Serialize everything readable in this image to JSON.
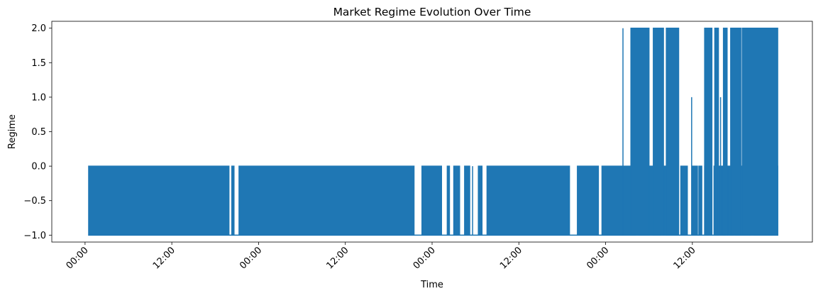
{
  "chart_data": {
    "type": "line",
    "title": "Market Regime Evolution Over Time",
    "xlabel": "Time",
    "ylabel": "Regime",
    "x_tick_labels": [
      "00:00",
      "12:00",
      "00:00",
      "12:00",
      "00:00",
      "12:00",
      "00:00",
      "12:00"
    ],
    "x_tick_hours": [
      24,
      36,
      48,
      60,
      72,
      84,
      96,
      108
    ],
    "x_range_hours": [
      19.4,
      124.6
    ],
    "y_tick_values": [
      -1.0,
      -0.5,
      0.0,
      0.5,
      1.0,
      1.5,
      2.0
    ],
    "y_tick_labels": [
      "−1.0",
      "−0.5",
      "0.0",
      "0.5",
      "1.0",
      "1.5",
      "2.0"
    ],
    "ylim": [
      -1.1,
      2.1
    ],
    "grid": false,
    "line_color": "#1f77b4",
    "series": [
      {
        "regime_values": [
          -1,
          0,
          1,
          2
        ],
        "segments": [
          {
            "start_hour": 24.5,
            "end_hour": 43.9,
            "regime": "alternating -1/0",
            "levels": [
              -1,
              0
            ]
          },
          {
            "start_hour": 43.9,
            "end_hour": 44.2,
            "regime": "-1",
            "levels": [
              -1
            ]
          },
          {
            "start_hour": 44.3,
            "end_hour": 44.6,
            "regime": "alternating -1/0",
            "levels": [
              -1,
              0
            ]
          },
          {
            "start_hour": 45.3,
            "end_hour": 69.5,
            "regime": "alternating -1/0",
            "levels": [
              -1,
              0
            ]
          },
          {
            "start_hour": 69.5,
            "end_hour": 70.2,
            "regime": "-1",
            "levels": [
              -1
            ]
          },
          {
            "start_hour": 70.6,
            "end_hour": 73.3,
            "regime": "alternating -1/0",
            "levels": [
              -1,
              0
            ]
          },
          {
            "start_hour": 74.1,
            "end_hour": 74.4,
            "regime": "alternating -1/0",
            "levels": [
              -1,
              0
            ]
          },
          {
            "start_hour": 75.0,
            "end_hour": 75.8,
            "regime": "alternating -1/0",
            "levels": [
              -1,
              0
            ]
          },
          {
            "start_hour": 76.5,
            "end_hour": 77.2,
            "regime": "alternating -1/0",
            "levels": [
              -1,
              0
            ]
          },
          {
            "start_hour": 77.6,
            "end_hour": 77.8,
            "regime": "alternating -1/0",
            "levels": [
              -1,
              0
            ]
          },
          {
            "start_hour": 78.4,
            "end_hour": 78.9,
            "regime": "alternating -1/0",
            "levels": [
              -1,
              0
            ]
          },
          {
            "start_hour": 79.6,
            "end_hour": 91.0,
            "regime": "alternating -1/0",
            "levels": [
              -1,
              0
            ]
          },
          {
            "start_hour": 92.1,
            "end_hour": 95.0,
            "regime": "alternating -1/0",
            "levels": [
              -1,
              0
            ]
          },
          {
            "start_hour": 95.5,
            "end_hour": 100.1,
            "regime": "alternating -1/0",
            "levels": [
              -1,
              0
            ]
          },
          {
            "start_hour": 100.6,
            "end_hour": 103.6,
            "regime": "alternating -1/0",
            "levels": [
              -1,
              0
            ]
          },
          {
            "start_hour": 104.1,
            "end_hour": 105.9,
            "regime": "alternating -1/0",
            "levels": [
              -1,
              0
            ]
          },
          {
            "start_hour": 106.4,
            "end_hour": 107.3,
            "regime": "alternating -1/0",
            "levels": [
              -1,
              0
            ]
          },
          {
            "start_hour": 108.0,
            "end_hour": 108.7,
            "regime": "alternating -1/0",
            "levels": [
              -1,
              0
            ]
          },
          {
            "start_hour": 108.9,
            "end_hour": 109.3,
            "regime": "alternating -1/0",
            "levels": [
              -1,
              0
            ]
          },
          {
            "start_hour": 109.7,
            "end_hour": 110.6,
            "regime": "alternating -1/0",
            "levels": [
              -1,
              0
            ]
          },
          {
            "start_hour": 111.0,
            "end_hour": 112.5,
            "regime": "alternating -1/0",
            "levels": [
              -1,
              0
            ]
          },
          {
            "start_hour": 112.9,
            "end_hour": 113.6,
            "regime": "alternating -1/0",
            "levels": [
              -1,
              0
            ]
          },
          {
            "start_hour": 114.0,
            "end_hour": 116.0,
            "regime": "alternating -1/0",
            "levels": [
              -1,
              0
            ]
          },
          {
            "start_hour": 116.5,
            "end_hour": 117.6,
            "regime": "alternating -1/0",
            "levels": [
              -1,
              0
            ]
          },
          {
            "start_hour": 117.8,
            "end_hour": 119.2,
            "regime": "alternating -1/0",
            "levels": [
              -1,
              0
            ]
          },
          {
            "start_hour": 119.4,
            "end_hour": 119.8,
            "regime": "alternating -1/0",
            "levels": [
              -1,
              0
            ]
          },
          {
            "start_hour": 98.4,
            "end_hour": 98.5,
            "regime": "2",
            "levels": [
              -1,
              2
            ]
          },
          {
            "start_hour": 99.5,
            "end_hour": 102.0,
            "regime": "alternating -1/2",
            "levels": [
              -1,
              2
            ]
          },
          {
            "start_hour": 102.6,
            "end_hour": 104.0,
            "regime": "alternating -1/2",
            "levels": [
              -1,
              2
            ]
          },
          {
            "start_hour": 104.4,
            "end_hour": 106.1,
            "regime": "alternating -1/2",
            "levels": [
              -1,
              2
            ]
          },
          {
            "start_hour": 109.7,
            "end_hour": 110.7,
            "regime": "alternating -1/2",
            "levels": [
              -1,
              2
            ]
          },
          {
            "start_hour": 111.1,
            "end_hour": 111.6,
            "regime": "alternating -1/2",
            "levels": [
              -1,
              2
            ]
          },
          {
            "start_hour": 112.3,
            "end_hour": 112.8,
            "regime": "alternating -1/2",
            "levels": [
              -1,
              2
            ]
          },
          {
            "start_hour": 113.3,
            "end_hour": 114.7,
            "regime": "alternating -1/2",
            "levels": [
              -1,
              2
            ]
          },
          {
            "start_hour": 114.9,
            "end_hour": 119.8,
            "regime": "alternating -1/2",
            "levels": [
              -1,
              2
            ]
          },
          {
            "start_hour": 107.9,
            "end_hour": 108.0,
            "regime": "1",
            "levels": [
              -1,
              1
            ]
          },
          {
            "start_hour": 111.9,
            "end_hour": 112.0,
            "regime": "1",
            "levels": [
              -1,
              1
            ]
          },
          {
            "start_hour": 115.9,
            "end_hour": 116.0,
            "regime": "1",
            "levels": [
              -1,
              1
            ]
          }
        ]
      }
    ]
  }
}
